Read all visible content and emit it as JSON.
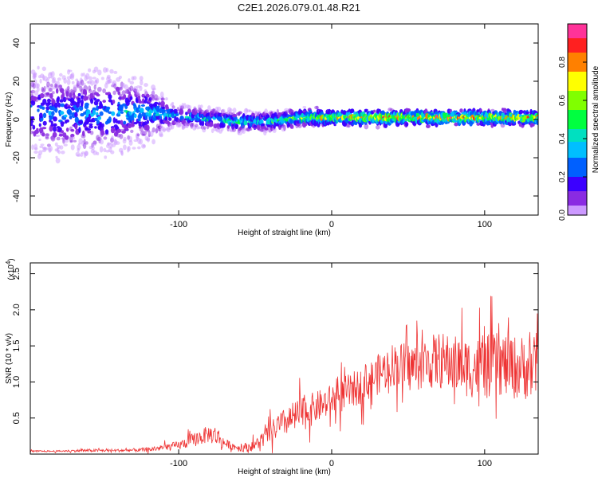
{
  "page_title": "C2E1.2026.079.01.48.R21",
  "chart_data": [
    {
      "type": "heatmap",
      "name": "spectrogram",
      "xlabel": "Height of straight line (km)",
      "ylabel": "Frequency (Hz)",
      "xlim": [
        -197,
        135
      ],
      "ylim": [
        -50,
        50
      ],
      "xticks": [
        -100,
        0,
        100
      ],
      "yticks": [
        -40,
        -20,
        0,
        20,
        40
      ],
      "colorbar": {
        "label": "Normalized spectral amplitude",
        "range": [
          0,
          1
        ],
        "ticks": [
          "0.0",
          "0.2",
          "0.4",
          "0.6",
          "0.8"
        ],
        "tick_values": [
          0.0,
          0.2,
          0.4,
          0.6,
          0.8
        ]
      },
      "trace": {
        "description": "central frequency ridge near 0 Hz",
        "x": [
          -197,
          -150,
          -120,
          -100,
          -80,
          -60,
          -40,
          -20,
          0,
          20,
          40,
          60,
          80,
          100,
          120,
          135
        ],
        "center_hz": [
          3,
          3,
          4,
          2,
          0,
          -1,
          -1,
          1,
          1,
          1,
          1,
          1,
          1,
          1,
          1,
          1
        ],
        "peak_amplitude": [
          0.3,
          0.35,
          0.45,
          0.45,
          0.5,
          0.55,
          0.55,
          0.7,
          0.8,
          0.9,
          0.95,
          0.95,
          0.95,
          0.9,
          0.9,
          0.85
        ],
        "spread_hz": [
          48,
          48,
          30,
          10,
          8,
          7,
          6,
          5,
          4,
          4,
          4,
          4,
          4,
          4,
          4,
          4
        ]
      }
    },
    {
      "type": "line",
      "name": "snr",
      "xlabel": "Height of straight line (km)",
      "ylabel": "SNR (10 * v/v)",
      "y_multiplier_label": "(x10",
      "y_multiplier_exp": "4",
      "y_multiplier_suffix": ")",
      "xlim": [
        -197,
        135
      ],
      "ylim": [
        0,
        2.65
      ],
      "xticks": [
        -100,
        0,
        100
      ],
      "yticks": [
        0.5,
        1.0,
        1.5,
        2.0,
        2.5
      ],
      "ytick_labels": [
        "0.5",
        "1.0",
        "1.5",
        "2.0",
        "2.5"
      ],
      "series": [
        {
          "name": "SNR",
          "color": "#ee3333",
          "x": [
            -197,
            -180,
            -160,
            -140,
            -120,
            -100,
            -90,
            -80,
            -75,
            -70,
            -60,
            -50,
            -40,
            -30,
            -20,
            -10,
            0,
            10,
            20,
            30,
            40,
            50,
            60,
            70,
            80,
            90,
            100,
            110,
            120,
            130,
            135
          ],
          "y": [
            0.04,
            0.04,
            0.05,
            0.05,
            0.06,
            0.12,
            0.2,
            0.28,
            0.25,
            0.15,
            0.08,
            0.12,
            0.3,
            0.45,
            0.55,
            0.65,
            0.75,
            0.85,
            0.95,
            1.1,
            1.25,
            1.2,
            1.25,
            1.3,
            1.25,
            1.2,
            1.2,
            1.25,
            1.2,
            1.2,
            1.25
          ],
          "noise": [
            0.01,
            0.01,
            0.02,
            0.02,
            0.03,
            0.06,
            0.1,
            0.12,
            0.15,
            0.06,
            0.05,
            0.08,
            0.15,
            0.2,
            0.25,
            0.22,
            0.22,
            0.25,
            0.25,
            0.28,
            0.3,
            0.35,
            0.35,
            0.4,
            0.4,
            0.42,
            0.45,
            0.45,
            0.45,
            0.45,
            0.45
          ]
        }
      ]
    }
  ]
}
